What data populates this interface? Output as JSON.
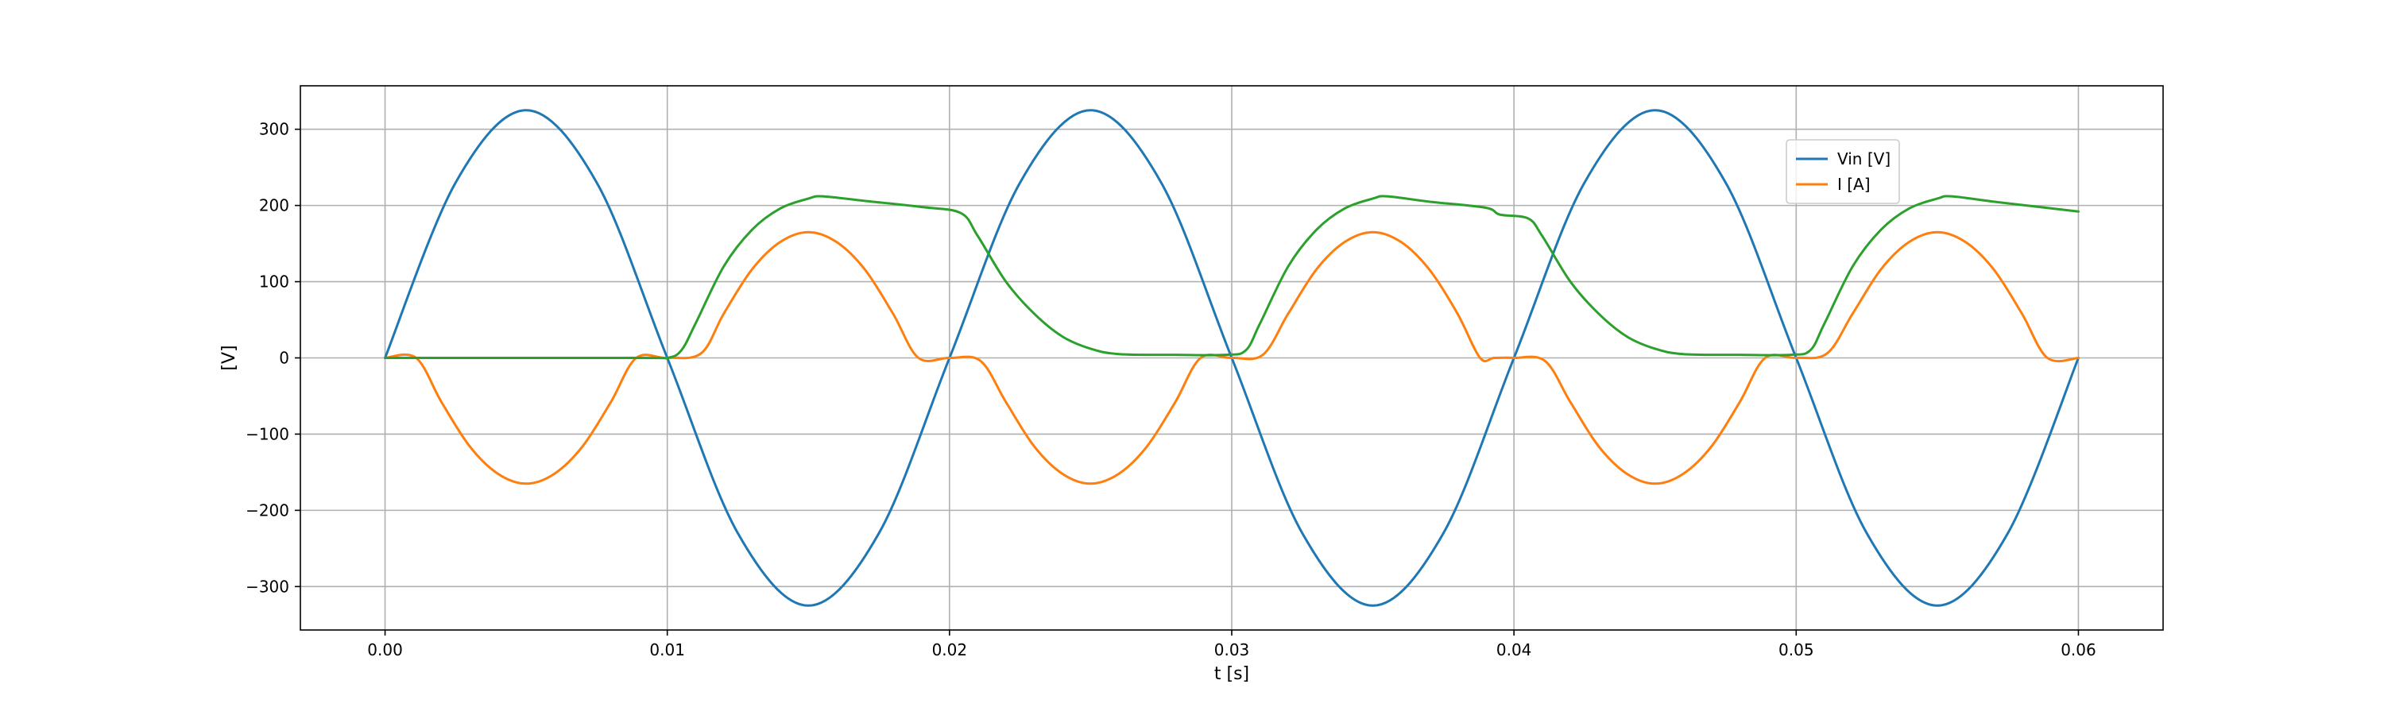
{
  "chart_data": {
    "type": "line",
    "title": "",
    "xlabel": "t [s]",
    "ylabel": "[V]",
    "xlim": [
      -0.003,
      0.063
    ],
    "ylim": [
      -357,
      357
    ],
    "grid": true,
    "legend_position": "top-right",
    "x_ticks": [
      0.0,
      0.01,
      0.02,
      0.03,
      0.04,
      0.05,
      0.06
    ],
    "x_tick_labels": [
      "0.00",
      "0.01",
      "0.02",
      "0.03",
      "0.04",
      "0.05",
      "0.06"
    ],
    "y_ticks": [
      -300,
      -200,
      -100,
      0,
      100,
      200,
      300
    ],
    "y_tick_labels": [
      "−300",
      "−200",
      "−100",
      "0",
      "100",
      "200",
      "300"
    ],
    "series": [
      {
        "name": "Vin [V]",
        "color": "#1f77b4",
        "x": [
          0,
          0.0025,
          0.005,
          0.0075,
          0.01,
          0.0125,
          0.015,
          0.0175,
          0.02,
          0.0225,
          0.025,
          0.0275,
          0.03,
          0.0325,
          0.035,
          0.0375,
          0.04,
          0.0425,
          0.045,
          0.0475,
          0.05,
          0.0525,
          0.055,
          0.0575,
          0.06
        ],
        "y": [
          0,
          230,
          325,
          230,
          0,
          -230,
          -325,
          -230,
          0,
          230,
          325,
          230,
          0,
          -230,
          -325,
          -230,
          0,
          230,
          325,
          230,
          0,
          -230,
          -325,
          -230,
          0
        ]
      },
      {
        "name": "I [A]",
        "color": "#ff7f0e",
        "x": [
          0,
          0.0011,
          0.002,
          0.003,
          0.004,
          0.005,
          0.006,
          0.007,
          0.008,
          0.0089,
          0.01,
          0.0112,
          0.012,
          0.013,
          0.014,
          0.015,
          0.016,
          0.017,
          0.018,
          0.0189,
          0.02,
          0.0211,
          0.022,
          0.023,
          0.024,
          0.025,
          0.026,
          0.027,
          0.028,
          0.0289,
          0.03,
          0.0311,
          0.032,
          0.033,
          0.034,
          0.035,
          0.036,
          0.037,
          0.038,
          0.0388,
          0.0393,
          0.04,
          0.0411,
          0.042,
          0.043,
          0.044,
          0.045,
          0.046,
          0.047,
          0.048,
          0.0489,
          0.05,
          0.0511,
          0.052,
          0.053,
          0.054,
          0.055,
          0.056,
          0.057,
          0.058,
          0.0589,
          0.06
        ],
        "y": [
          0,
          0,
          -58,
          -116,
          -152,
          -165,
          -152,
          -116,
          -58,
          0,
          0,
          6,
          58,
          116,
          152,
          165,
          152,
          116,
          58,
          0,
          0,
          -4,
          -58,
          -116,
          -152,
          -165,
          -152,
          -116,
          -58,
          0,
          0,
          4,
          58,
          116,
          152,
          165,
          152,
          116,
          58,
          0,
          0,
          0,
          -4,
          -58,
          -116,
          -152,
          -165,
          -152,
          -116,
          -58,
          0,
          0,
          6,
          58,
          116,
          152,
          165,
          152,
          116,
          58,
          0,
          0
        ]
      },
      {
        "name": "",
        "color": "#2ca02c",
        "x": [
          0,
          0.009,
          0.01,
          0.0105,
          0.011,
          0.012,
          0.013,
          0.014,
          0.015,
          0.0155,
          0.017,
          0.019,
          0.0204,
          0.021,
          0.022,
          0.023,
          0.024,
          0.025,
          0.026,
          0.028,
          0.0298,
          0.0305,
          0.031,
          0.032,
          0.033,
          0.034,
          0.035,
          0.0355,
          0.037,
          0.039,
          0.0395,
          0.0405,
          0.041,
          0.042,
          0.043,
          0.044,
          0.045,
          0.046,
          0.048,
          0.0498,
          0.0505,
          0.051,
          0.052,
          0.053,
          0.054,
          0.055,
          0.0555,
          0.057,
          0.06
        ],
        "y": [
          0,
          0,
          0,
          10,
          45,
          120,
          168,
          196,
          209,
          212,
          206,
          198,
          190,
          160,
          100,
          58,
          28,
          12,
          5,
          4,
          4,
          10,
          45,
          120,
          168,
          196,
          209,
          212,
          205,
          197,
          188,
          183,
          160,
          100,
          58,
          28,
          12,
          5,
          4,
          4,
          10,
          45,
          120,
          168,
          196,
          209,
          212,
          205,
          192
        ]
      }
    ]
  }
}
